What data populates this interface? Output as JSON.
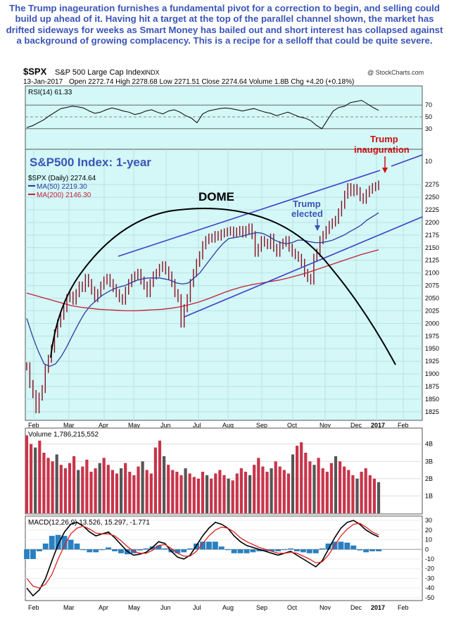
{
  "caption": "The Trump inageuration furnishes a fundamental pivot for a correction to begin, and selling could build up ahead of it. Having hit a target at the top of the parallel channel shown, the market has drifted sideways for weeks as Smart Money has bailed out and short interest has collapsed against a background of growing complacency. This is a recipe for a selloff that could be quite severe.",
  "header": {
    "symbol": "$SPX",
    "name": "S&P 500 Large Cap Index",
    "exchange": "INDX",
    "credit": "@ StockCharts.com",
    "date": "13-Jan-2017",
    "ohlc_line": "Open 2272.74  High 2278.68  Low 2271.51  Close 2274.64  Volume 1.8B  Chg +4.20 (+0.18%)"
  },
  "colors": {
    "background": "#d4f7f7",
    "price": "#8b0d1f",
    "ma50": "#2e3ba0",
    "ma200": "#c41e3a",
    "channel": "#3f3fc8",
    "annot_blue": "#3a55b8",
    "annot_red": "#cc1111",
    "volume": "#c8344a",
    "macd_hist": "#2a7fc0"
  },
  "chart_data": [
    {
      "type": "line",
      "name": "RSI panel",
      "label": "RSI(14) 61.33",
      "ylim": [
        0,
        100
      ],
      "y_ticks": [
        30,
        50,
        70
      ],
      "series": [
        {
          "name": "RSI(14)",
          "values": [
            32,
            35,
            40,
            45,
            52,
            58,
            64,
            66,
            68,
            67,
            65,
            60,
            56,
            58,
            62,
            65,
            63,
            60,
            58,
            54,
            56,
            60,
            62,
            58,
            55,
            60,
            62,
            58,
            52,
            48,
            40,
            55,
            60,
            62,
            64,
            65,
            64,
            62,
            60,
            62,
            64,
            61,
            58,
            56,
            52,
            55,
            58,
            54,
            50,
            48,
            44,
            36,
            30,
            45,
            60,
            66,
            68,
            74,
            76,
            78,
            72,
            66,
            61
          ]
        }
      ]
    },
    {
      "type": "line",
      "name": "Price panel",
      "title": "S&P500 Index: 1-year",
      "legend": [
        "$SPX (Daily) 2274.64",
        "MA(50) 2219.30",
        "MA(200) 2146.30"
      ],
      "x_ticks": [
        "Feb",
        "Mar",
        "Apr",
        "May",
        "Jun",
        "Jul",
        "Aug",
        "Sep",
        "Oct",
        "Nov",
        "Dec",
        "2017",
        "Feb"
      ],
      "y_ticks": [
        1825,
        1850,
        1875,
        1900,
        1925,
        1950,
        1975,
        2000,
        2025,
        2050,
        2075,
        2100,
        2125,
        2150,
        2175,
        2200,
        2225,
        2250,
        2275
      ],
      "ylim": [
        1808,
        2345
      ],
      "annotations": [
        "DOME",
        "Trump elected",
        "Trump inauguration",
        "10"
      ],
      "series": [
        {
          "name": "$SPX",
          "values": [
            1915,
            1880,
            1860,
            1830,
            1855,
            1870,
            1910,
            1930,
            1950,
            1980,
            2000,
            2015,
            2030,
            2050,
            2055,
            2045,
            2060,
            2075,
            2070,
            2090,
            2080,
            2065,
            2050,
            2060,
            2075,
            2085,
            2090,
            2080,
            2070,
            2060,
            2050,
            2045,
            2065,
            2080,
            2090,
            2095,
            2100,
            2085,
            2075,
            2060,
            2080,
            2095,
            2100,
            2110,
            2115,
            2105,
            2095,
            2080,
            2060,
            2050,
            2000,
            2030,
            2050,
            2080,
            2100,
            2120,
            2135,
            2155,
            2165,
            2170,
            2168,
            2175,
            2172,
            2178,
            2180,
            2182,
            2184,
            2178,
            2182,
            2185,
            2178,
            2185,
            2190,
            2175,
            2140,
            2150,
            2165,
            2160,
            2155,
            2170,
            2150,
            2140,
            2155,
            2160,
            2165,
            2150,
            2140,
            2135,
            2130,
            2120,
            2100,
            2090,
            2085,
            2130,
            2140,
            2165,
            2175,
            2185,
            2195,
            2200,
            2205,
            2220,
            2235,
            2255,
            2270,
            2260,
            2268,
            2262,
            2250,
            2245,
            2258,
            2265,
            2270,
            2272,
            2275
          ]
        },
        {
          "name": "MA(50)",
          "values": [
            2010,
            1975,
            1945,
            1920,
            1915,
            1920,
            1935,
            1955,
            1978,
            2000,
            2020,
            2035,
            2045,
            2055,
            2062,
            2068,
            2072,
            2075,
            2080,
            2085,
            2088,
            2090,
            2090,
            2090,
            2088,
            2085,
            2080,
            2078,
            2080,
            2090,
            2100,
            2115,
            2130,
            2145,
            2158,
            2168,
            2170,
            2172,
            2175,
            2178,
            2180,
            2178,
            2172,
            2165,
            2160,
            2158,
            2160,
            2165,
            2165,
            2162,
            2160,
            2160,
            2162,
            2165,
            2170,
            2175,
            2182,
            2188,
            2195,
            2205,
            2212,
            2219
          ]
        },
        {
          "name": "MA(200)",
          "values": [
            2060,
            2055,
            2050,
            2045,
            2040,
            2035,
            2032,
            2030,
            2028,
            2027,
            2026,
            2025,
            2025,
            2026,
            2027,
            2028,
            2030,
            2033,
            2037,
            2042,
            2048,
            2055,
            2062,
            2068,
            2073,
            2077,
            2080,
            2083,
            2086,
            2090,
            2095,
            2100,
            2106,
            2112,
            2118,
            2124,
            2130,
            2136,
            2141,
            2146
          ]
        }
      ]
    },
    {
      "type": "bar",
      "name": "Volume panel",
      "label": "Volume 1,786,215,552",
      "y_ticks": [
        "1B",
        "2B",
        "3B",
        "4B"
      ],
      "ylim": [
        0,
        4.8
      ],
      "series": [
        {
          "name": "Volume (billions)",
          "values": [
            4.5,
            4.0,
            3.8,
            4.2,
            3.5,
            3.2,
            3.0,
            3.4,
            2.8,
            2.6,
            2.9,
            3.3,
            2.5,
            2.7,
            3.1,
            2.4,
            2.6,
            2.9,
            3.2,
            2.8,
            2.5,
            2.3,
            2.6,
            2.9,
            2.4,
            2.2,
            2.7,
            3.0,
            2.5,
            2.3,
            3.8,
            4.2,
            3.3,
            2.8,
            2.5,
            2.4,
            2.2,
            2.6,
            2.3,
            2.1,
            2.0,
            2.4,
            2.2,
            2.0,
            2.3,
            2.5,
            2.2,
            2.0,
            1.9,
            2.3,
            2.6,
            2.4,
            2.2,
            2.8,
            3.2,
            2.7,
            2.4,
            2.6,
            3.0,
            2.7,
            2.5,
            2.3,
            3.4,
            3.9,
            4.1,
            3.5,
            3.0,
            2.8,
            3.2,
            2.6,
            2.4,
            2.9,
            3.3,
            3.0,
            2.7,
            2.5,
            2.2,
            2.0,
            2.4,
            2.6,
            2.2,
            2.0,
            1.8
          ]
        }
      ]
    },
    {
      "type": "line",
      "name": "MACD panel",
      "label": "MACD(12,26,9) 13.526, 15.297, -1.771",
      "x_ticks": [
        "Feb",
        "Mar",
        "Apr",
        "May",
        "Jun",
        "Jul",
        "Aug",
        "Sep",
        "Oct",
        "Nov",
        "Dec",
        "2017",
        "Feb"
      ],
      "y_ticks": [
        -50,
        -40,
        -30,
        -20,
        -10,
        0,
        10,
        20,
        30
      ],
      "ylim": [
        -53,
        33
      ],
      "series": [
        {
          "name": "MACD",
          "values": [
            -40,
            -48,
            -42,
            -30,
            -12,
            5,
            18,
            26,
            28,
            24,
            18,
            14,
            16,
            18,
            12,
            5,
            -2,
            -6,
            -5,
            -3,
            2,
            8,
            6,
            -2,
            -8,
            -10,
            -6,
            4,
            14,
            22,
            28,
            26,
            22,
            14,
            8,
            4,
            2,
            0,
            -2,
            -4,
            -6,
            -4,
            -2,
            -6,
            -10,
            -14,
            -18,
            -12,
            0,
            12,
            22,
            28,
            30,
            26,
            20,
            16,
            13
          ]
        },
        {
          "name": "Signal",
          "values": [
            -30,
            -38,
            -40,
            -36,
            -26,
            -10,
            4,
            16,
            22,
            24,
            21,
            17,
            16,
            16,
            14,
            9,
            3,
            -2,
            -4,
            -4,
            -1,
            4,
            5,
            1,
            -4,
            -7,
            -7,
            -2,
            6,
            14,
            20,
            23,
            22,
            18,
            12,
            8,
            5,
            2,
            0,
            -2,
            -4,
            -4,
            -3,
            -4,
            -7,
            -10,
            -14,
            -13,
            -6,
            4,
            14,
            21,
            26,
            27,
            23,
            18,
            15
          ]
        },
        {
          "name": "Histogram",
          "values": [
            -10,
            -10,
            -2,
            6,
            14,
            15,
            14,
            10,
            6,
            0,
            -3,
            -3,
            0,
            2,
            -2,
            -4,
            -5,
            -4,
            -1,
            1,
            3,
            4,
            1,
            -3,
            -4,
            -3,
            1,
            6,
            8,
            8,
            8,
            3,
            0,
            -4,
            -4,
            -4,
            -3,
            -2,
            -2,
            -2,
            -2,
            0,
            1,
            -2,
            -3,
            -4,
            -4,
            1,
            6,
            8,
            8,
            7,
            4,
            -1,
            -3,
            -2,
            -2
          ]
        }
      ]
    }
  ]
}
